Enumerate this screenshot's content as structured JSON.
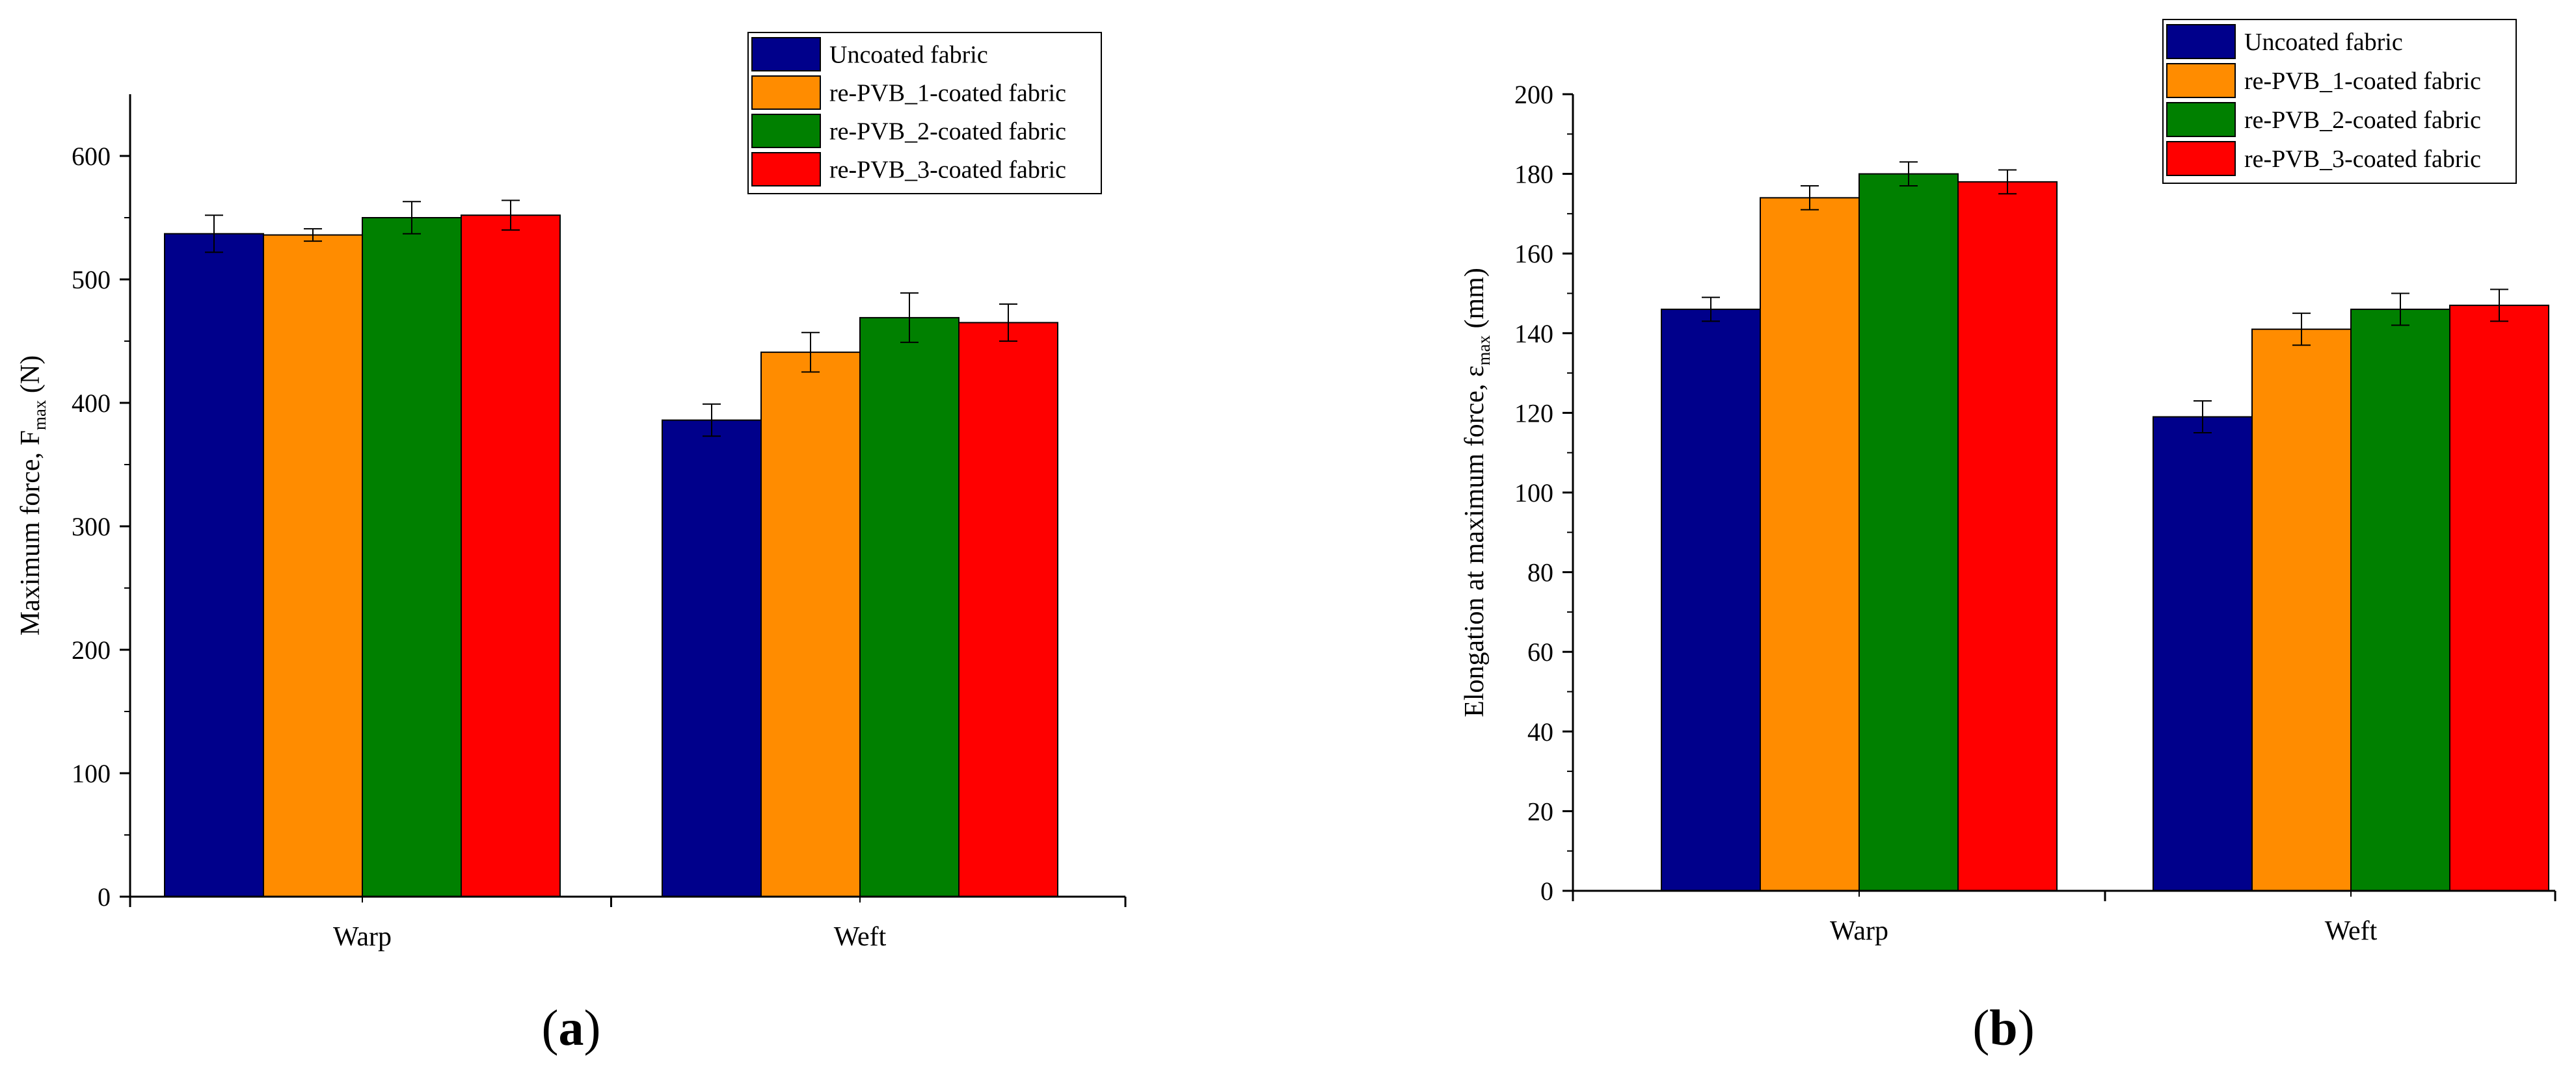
{
  "figure": {
    "panels": [
      {
        "label_open": "(",
        "label_letter": "a",
        "label_close": ")"
      },
      {
        "label_open": "(",
        "label_letter": "b",
        "label_close": ")"
      }
    ]
  },
  "chart_data": [
    {
      "type": "bar",
      "title": "",
      "xlabel": "",
      "ylabel": "Maximum force, F",
      "ylabel_subscript": "max",
      "ylabel_suffix": " (N)",
      "categories": [
        "Warp",
        "Weft"
      ],
      "ylim": [
        0,
        650
      ],
      "yticks": [
        0,
        100,
        200,
        300,
        400,
        500,
        600
      ],
      "legend_position": "top-right",
      "series": [
        {
          "name": "Uncoated fabric",
          "color": "#00008B",
          "values": [
            537,
            386
          ],
          "errors": [
            15,
            13
          ]
        },
        {
          "name": "re-PVB_1-coated fabric",
          "color": "#FF8C00",
          "values": [
            536,
            441
          ],
          "errors": [
            5,
            16
          ]
        },
        {
          "name": "re-PVB_2-coated fabric",
          "color": "#008000",
          "values": [
            550,
            469
          ],
          "errors": [
            13,
            20
          ]
        },
        {
          "name": "re-PVB_3-coated fabric",
          "color": "#FF0000",
          "values": [
            552,
            465
          ],
          "errors": [
            12,
            15
          ]
        }
      ]
    },
    {
      "type": "bar",
      "title": "",
      "xlabel": "",
      "ylabel": "Elongation at maximum force, ε",
      "ylabel_subscript": "max",
      "ylabel_suffix": " (mm)",
      "categories": [
        "Warp",
        "Weft"
      ],
      "ylim": [
        0,
        200
      ],
      "yticks": [
        0,
        20,
        40,
        60,
        80,
        100,
        120,
        140,
        160,
        180,
        200
      ],
      "legend_position": "top-right",
      "series": [
        {
          "name": "Uncoated fabric",
          "color": "#00008B",
          "values": [
            146,
            119
          ],
          "errors": [
            3,
            4
          ]
        },
        {
          "name": "re-PVB_1-coated fabric",
          "color": "#FF8C00",
          "values": [
            174,
            141
          ],
          "errors": [
            3,
            4
          ]
        },
        {
          "name": "re-PVB_2-coated fabric",
          "color": "#008000",
          "values": [
            180,
            146
          ],
          "errors": [
            3,
            4
          ]
        },
        {
          "name": "re-PVB_3-coated fabric",
          "color": "#FF0000",
          "values": [
            178,
            147
          ],
          "errors": [
            3,
            4
          ]
        }
      ]
    }
  ]
}
